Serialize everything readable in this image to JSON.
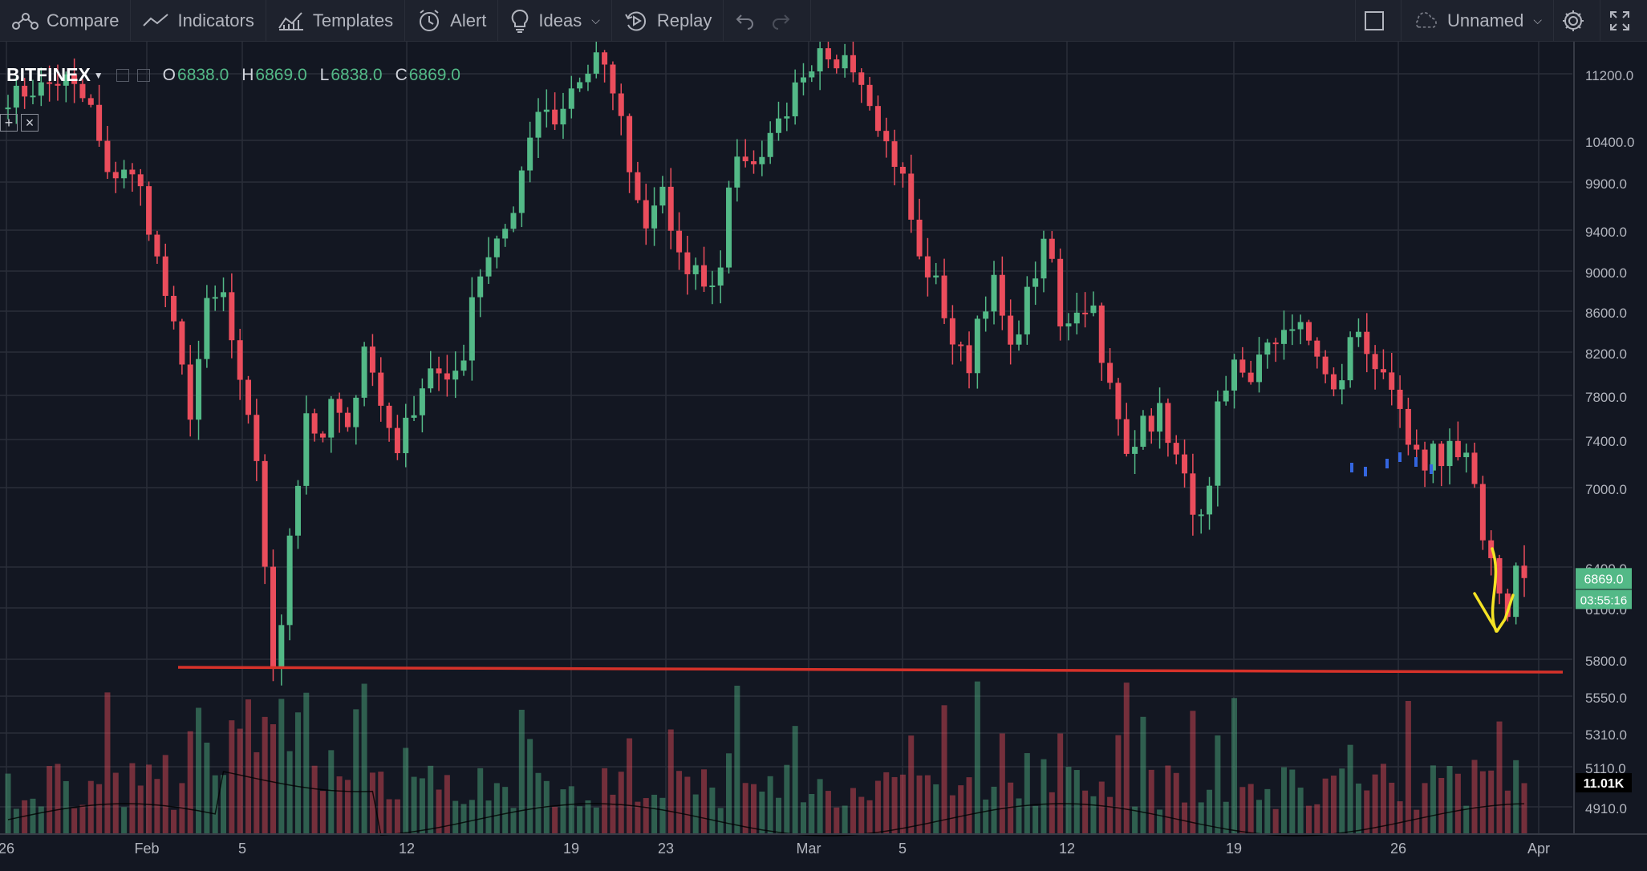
{
  "toolbar": {
    "compare": "Compare",
    "indicators": "Indicators",
    "templates": "Templates",
    "alert": "Alert",
    "ideas": "Ideas",
    "replay": "Replay",
    "layout_name": "Unnamed"
  },
  "legend": {
    "symbol": "BITFINEX",
    "open_label": "O",
    "open": "6838.0",
    "high_label": "H",
    "high": "6869.0",
    "low_label": "L",
    "low": "6838.0",
    "close_label": "C",
    "close": "6869.0"
  },
  "colors": {
    "up": "#53b987",
    "down": "#eb4d5c",
    "support_line": "#d6322a",
    "arrow": "#f5e324",
    "background": "#131722",
    "grid": "#2a2e39"
  },
  "chart_data": {
    "type": "candlestick",
    "x_tick_labels": [
      "26",
      "Feb",
      "5",
      "12",
      "19",
      "23",
      "Mar",
      "5",
      "12",
      "19",
      "26",
      "Apr"
    ],
    "price_tick_labels": [
      "11200.0",
      "10400.0",
      "9900.0",
      "9400.0",
      "9000.0",
      "8600.0",
      "8200.0",
      "7800.0",
      "7400.0",
      "7000.0",
      "6400.0",
      "6100.0",
      "5800.0",
      "5550.0",
      "5310.0",
      "5110.0",
      "4910.0"
    ],
    "price_ticks": [
      11200,
      10400,
      9900,
      9400,
      9000,
      8600,
      8200,
      7800,
      7400,
      7000,
      6400,
      6100,
      5800,
      5550,
      5310,
      5110,
      4910
    ],
    "current_price": "6869.0",
    "countdown": "03:55:16",
    "volume_label": "11.01K",
    "support_level": 6080,
    "price_path": [
      [
        0,
        11000
      ],
      [
        7,
        11150
      ],
      [
        10,
        10900
      ],
      [
        12,
        10300
      ],
      [
        14,
        10400
      ],
      [
        16,
        10200
      ],
      [
        18,
        9600
      ],
      [
        20,
        9000
      ],
      [
        22,
        8300
      ],
      [
        24,
        9200
      ],
      [
        26,
        9300
      ],
      [
        28,
        8500
      ],
      [
        30,
        7900
      ],
      [
        31,
        7000
      ],
      [
        32,
        6050
      ],
      [
        33,
        6500
      ],
      [
        34,
        7300
      ],
      [
        35,
        7700
      ],
      [
        36,
        8300
      ],
      [
        38,
        8000
      ],
      [
        39,
        8400
      ],
      [
        41,
        8100
      ],
      [
        43,
        8900
      ],
      [
        45,
        8350
      ],
      [
        47,
        8000
      ],
      [
        49,
        8350
      ],
      [
        51,
        8700
      ],
      [
        53,
        8500
      ],
      [
        55,
        8800
      ],
      [
        56,
        9300
      ],
      [
        57,
        9500
      ],
      [
        59,
        9800
      ],
      [
        61,
        10000
      ],
      [
        63,
        10700
      ],
      [
        65,
        10900
      ],
      [
        66,
        10700
      ],
      [
        68,
        11050
      ],
      [
        70,
        11200
      ],
      [
        71,
        11350
      ],
      [
        72,
        11200
      ],
      [
        73,
        11050
      ],
      [
        74,
        10800
      ],
      [
        75,
        10400
      ],
      [
        76,
        10100
      ],
      [
        77,
        9900
      ],
      [
        78,
        10100
      ],
      [
        79,
        10250
      ],
      [
        80,
        9800
      ],
      [
        81,
        9600
      ],
      [
        83,
        9500
      ],
      [
        85,
        9400
      ],
      [
        86,
        9600
      ],
      [
        87,
        10300
      ],
      [
        89,
        10500
      ],
      [
        90,
        10400
      ],
      [
        92,
        10700
      ],
      [
        94,
        10900
      ],
      [
        95,
        11050
      ],
      [
        97,
        11150
      ],
      [
        98,
        11350
      ],
      [
        99,
        11250
      ],
      [
        100,
        11200
      ],
      [
        101,
        11400
      ],
      [
        102,
        11300
      ],
      [
        104,
        11000
      ],
      [
        106,
        10600
      ],
      [
        108,
        10300
      ],
      [
        110,
        9600
      ],
      [
        112,
        9400
      ],
      [
        114,
        8900
      ],
      [
        116,
        8700
      ],
      [
        117,
        9100
      ],
      [
        119,
        9400
      ],
      [
        121,
        8800
      ],
      [
        123,
        9300
      ],
      [
        125,
        9700
      ],
      [
        126,
        9600
      ],
      [
        127,
        9000
      ],
      [
        129,
        9200
      ],
      [
        131,
        9200
      ],
      [
        132,
        8800
      ],
      [
        134,
        8200
      ],
      [
        135,
        7900
      ],
      [
        136,
        8000
      ],
      [
        137,
        8350
      ],
      [
        138,
        8200
      ],
      [
        139,
        8300
      ],
      [
        140,
        8100
      ],
      [
        141,
        7900
      ],
      [
        143,
        7500
      ],
      [
        144,
        7350
      ],
      [
        145,
        7600
      ],
      [
        146,
        8300
      ],
      [
        147,
        8400
      ],
      [
        148,
        8700
      ],
      [
        150,
        8600
      ],
      [
        151,
        8750
      ],
      [
        153,
        8900
      ],
      [
        154,
        9050
      ],
      [
        156,
        9000
      ],
      [
        158,
        8800
      ],
      [
        159,
        8600
      ],
      [
        160,
        8450
      ],
      [
        161,
        8600
      ],
      [
        162,
        8900
      ],
      [
        163,
        9000
      ],
      [
        164,
        8850
      ],
      [
        165,
        8700
      ],
      [
        166,
        8550
      ],
      [
        167,
        8400
      ],
      [
        168,
        8300
      ],
      [
        169,
        7950
      ],
      [
        170,
        7900
      ],
      [
        171,
        7850
      ],
      [
        172,
        8000
      ],
      [
        173,
        7900
      ],
      [
        174,
        8050
      ],
      [
        175,
        7900
      ],
      [
        176,
        7900
      ],
      [
        177,
        7600
      ],
      [
        178,
        7200
      ],
      [
        179,
        7100
      ],
      [
        180,
        6750
      ],
      [
        181,
        6600
      ],
      [
        182,
        6950
      ],
      [
        183,
        6869
      ]
    ]
  }
}
